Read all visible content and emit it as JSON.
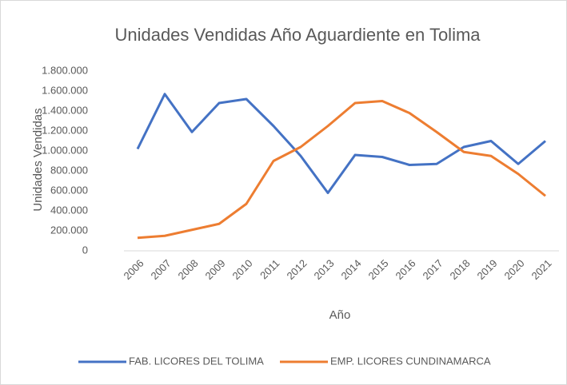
{
  "chart_data": {
    "type": "line",
    "title": "Unidades Vendidas Año Aguardiente en Tolima",
    "x_label": "Año",
    "y_label": "Unidades Vendidas",
    "categories": [
      "2006",
      "2007",
      "2008",
      "2009",
      "2010",
      "2011",
      "2012",
      "2013",
      "2014",
      "2015",
      "2016",
      "2017",
      "2018",
      "2019",
      "2020",
      "2021"
    ],
    "series": [
      {
        "name": "FAB. LICORES DEL TOLIMA",
        "color": "#4472c4",
        "values": [
          1020000,
          1570000,
          1190000,
          1480000,
          1520000,
          1250000,
          950000,
          580000,
          960000,
          940000,
          860000,
          870000,
          1040000,
          1100000,
          870000,
          1100000
        ]
      },
      {
        "name": "EMP. LICORES CUNDINAMARCA",
        "color": "#ed7d31",
        "values": [
          130000,
          150000,
          210000,
          270000,
          470000,
          900000,
          1040000,
          1250000,
          1480000,
          1500000,
          1380000,
          1190000,
          990000,
          950000,
          770000,
          550000
        ]
      }
    ],
    "ylim": [
      0,
      1800000
    ],
    "yticks": [
      0,
      {
        "value": 200000,
        "label": "200.000"
      },
      {
        "value": 400000,
        "label": "400.000"
      },
      {
        "value": 600000,
        "label": "600.000"
      },
      {
        "value": 800000,
        "label": "800.000"
      },
      {
        "value": 1000000,
        "label": "1.000.000"
      },
      {
        "value": 1200000,
        "label": "1.200.000"
      },
      {
        "value": 1400000,
        "label": "1.400.000"
      },
      {
        "value": 1600000,
        "label": "1.600.000"
      },
      {
        "value": 1800000,
        "label": "1.800.000"
      }
    ],
    "grid": false,
    "legend": "bottom"
  }
}
